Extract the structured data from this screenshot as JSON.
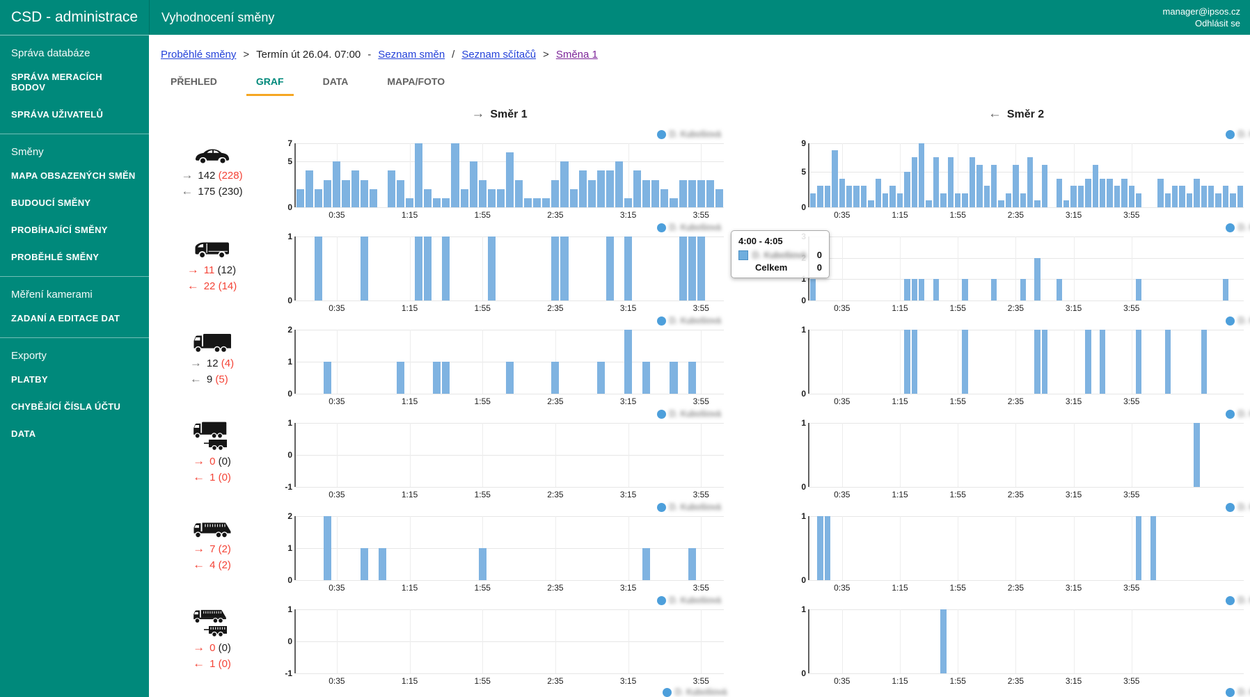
{
  "colors": {
    "teal": "#00897b",
    "tab_underline": "#f5a623",
    "link": "#2442d9",
    "visited_link": "#7d2699",
    "bar": "#7fb3e1",
    "legend_dot": "#4d9fdb",
    "red": "#f44336",
    "gray": "#757575"
  },
  "topbar": {
    "brand": "CSD - administrace",
    "title": "Vyhodnocení směny",
    "email": "manager@ipsos.cz",
    "logout": "Odhlásit se"
  },
  "sidebar": {
    "sections": [
      {
        "header": "Správa databáze",
        "items": [
          {
            "label": "SPRÁVA MERACÍCH BODOV"
          },
          {
            "label": "SPRÁVA UŽIVATELŮ"
          }
        ]
      },
      {
        "header": "Směny",
        "items": [
          {
            "label": "MAPA OBSAZENÝCH SMĚN"
          },
          {
            "label": "BUDOUCÍ SMĚNY"
          },
          {
            "label": "PROBÍHAJÍCÍ SMĚNY"
          },
          {
            "label": "PROBĚHLÉ SMĚNY"
          }
        ]
      },
      {
        "header": "Měření kamerami",
        "items": [
          {
            "label": "ZADANÍ A EDITACE DAT"
          }
        ]
      },
      {
        "header": "Exporty",
        "items": [
          {
            "label": "PLATBY"
          },
          {
            "label": "CHYBĚJÍCÍ ČÍSLA ÚČTU"
          },
          {
            "label": "DATA"
          }
        ]
      }
    ]
  },
  "breadcrumb": [
    {
      "text": "Proběhlé směny",
      "type": "link"
    },
    {
      "text": ">",
      "type": "sep"
    },
    {
      "text": "Termín út 26.04. 07:00",
      "type": "text"
    },
    {
      "text": "-",
      "type": "sep"
    },
    {
      "text": "Seznam směn",
      "type": "link"
    },
    {
      "text": "/",
      "type": "sep"
    },
    {
      "text": "Seznam sčítačů",
      "type": "link"
    },
    {
      "text": ">",
      "type": "sep"
    },
    {
      "text": "Směna 1",
      "type": "visited"
    }
  ],
  "tabs": [
    {
      "label": "PŘEHLED",
      "active": false
    },
    {
      "label": "GRAF",
      "active": true
    },
    {
      "label": "DATA",
      "active": false
    },
    {
      "label": "MAPA/FOTO",
      "active": false
    }
  ],
  "direction_headers": {
    "arrow_right": "→",
    "dir1": "Směr 1",
    "arrow_left": "←",
    "dir2": "Směr 2"
  },
  "legend_name": "D. Kubošiová",
  "tooltip": {
    "title": "4:00 - 4:05",
    "series_name": "D. Kubošiová",
    "series_value": "0",
    "total_label": "Celkem",
    "total_value": "0"
  },
  "xlabels": [
    "0:35",
    "1:15",
    "1:55",
    "2:35",
    "3:15",
    "3:55"
  ],
  "xlabel_indices": [
    4,
    12,
    20,
    28,
    36,
    44
  ],
  "rows": [
    {
      "vehicle": "car-icon",
      "counts": [
        {
          "arrow": "→",
          "arrow_color": "gray",
          "number": "142",
          "number_color": "dark",
          "paren": "(228)",
          "paren_color": "red"
        },
        {
          "arrow": "←",
          "arrow_color": "gray",
          "number": "175",
          "number_color": "dark",
          "paren": "(230)",
          "paren_color": "dark"
        }
      ],
      "left_chart": {
        "ymin": 0,
        "ymax": 7,
        "yticks": [
          7,
          5,
          0
        ],
        "bars": [
          2,
          4,
          2,
          3,
          5,
          3,
          4,
          3,
          2,
          0,
          4,
          3,
          1,
          7,
          2,
          1,
          1,
          7,
          2,
          5,
          3,
          2,
          2,
          6,
          3,
          1,
          1,
          1,
          3,
          5,
          2,
          4,
          3,
          4,
          4,
          5,
          1,
          4,
          3,
          3,
          2,
          1,
          3,
          3,
          3,
          3,
          2
        ]
      },
      "right_chart": {
        "ymin": 0,
        "ymax": 9,
        "yticks": [
          9,
          5,
          0
        ],
        "bars": [
          2,
          3,
          3,
          8,
          4,
          3,
          3,
          3,
          1,
          4,
          2,
          3,
          2,
          5,
          7,
          9,
          1,
          7,
          2,
          7,
          2,
          2,
          7,
          6,
          3,
          6,
          1,
          2,
          6,
          2,
          7,
          1,
          6,
          0,
          4,
          1,
          3,
          3,
          4,
          6,
          4,
          4,
          3,
          4,
          3,
          2,
          0,
          0,
          4,
          2,
          3,
          3,
          2,
          4,
          3,
          3,
          2,
          3,
          2,
          3
        ]
      }
    },
    {
      "vehicle": "van-icon",
      "counts": [
        {
          "arrow": "→",
          "arrow_color": "red",
          "number": "11",
          "number_color": "red",
          "paren": "(12)",
          "paren_color": "dark"
        },
        {
          "arrow": "←",
          "arrow_color": "red",
          "number": "22",
          "number_color": "red",
          "paren": "(14)",
          "paren_color": "red"
        }
      ],
      "left_chart": {
        "ymin": 0,
        "ymax": 1,
        "yticks": [
          1,
          0
        ],
        "bars": [
          0,
          0,
          1,
          0,
          0,
          0,
          0,
          1,
          0,
          0,
          0,
          0,
          0,
          1,
          1,
          0,
          1,
          0,
          0,
          0,
          0,
          1,
          0,
          0,
          0,
          0,
          0,
          0,
          1,
          1,
          0,
          0,
          0,
          0,
          1,
          0,
          1,
          0,
          0,
          0,
          0,
          0,
          1,
          1,
          1,
          0,
          0
        ]
      },
      "right_chart": {
        "ymin": 0,
        "ymax": 3,
        "yticks": [
          3,
          2,
          1,
          0
        ],
        "bars": [
          1,
          0,
          0,
          0,
          0,
          0,
          0,
          0,
          0,
          0,
          0,
          0,
          0,
          1,
          1,
          1,
          0,
          1,
          0,
          0,
          0,
          1,
          0,
          0,
          0,
          1,
          0,
          0,
          0,
          1,
          0,
          2,
          0,
          0,
          1,
          0,
          0,
          0,
          0,
          0,
          0,
          0,
          0,
          0,
          0,
          1,
          0,
          0,
          0,
          0,
          0,
          0,
          0,
          0,
          0,
          0,
          0,
          1,
          0,
          0
        ]
      }
    },
    {
      "vehicle": "truck-icon",
      "counts": [
        {
          "arrow": "→",
          "arrow_color": "gray",
          "number": "12",
          "number_color": "dark",
          "paren": "(4)",
          "paren_color": "red"
        },
        {
          "arrow": "←",
          "arrow_color": "gray",
          "number": "9",
          "number_color": "dark",
          "paren": "(5)",
          "paren_color": "red"
        }
      ],
      "left_chart": {
        "ymin": 0,
        "ymax": 2,
        "yticks": [
          2,
          1,
          0
        ],
        "bars": [
          0,
          0,
          0,
          1,
          0,
          0,
          0,
          0,
          0,
          0,
          0,
          1,
          0,
          0,
          0,
          1,
          1,
          0,
          0,
          0,
          0,
          0,
          0,
          1,
          0,
          0,
          0,
          0,
          1,
          0,
          0,
          0,
          0,
          1,
          0,
          0,
          2,
          0,
          1,
          0,
          0,
          1,
          0,
          1,
          0,
          0,
          0
        ]
      },
      "right_chart": {
        "ymin": 0,
        "ymax": 1,
        "yticks": [
          1,
          0
        ],
        "bars": [
          0,
          0,
          0,
          0,
          0,
          0,
          0,
          0,
          0,
          0,
          0,
          0,
          0,
          1,
          1,
          0,
          0,
          0,
          0,
          0,
          0,
          1,
          0,
          0,
          0,
          0,
          0,
          0,
          0,
          0,
          0,
          1,
          1,
          0,
          0,
          0,
          0,
          0,
          1,
          0,
          1,
          0,
          0,
          0,
          0,
          1,
          0,
          0,
          0,
          1,
          0,
          0,
          0,
          0,
          1,
          0,
          0,
          0,
          0,
          0
        ]
      }
    },
    {
      "vehicle": "truck-trailer-icon",
      "counts": [
        {
          "arrow": "→",
          "arrow_color": "red",
          "number": "0",
          "number_color": "red",
          "paren": "(0)",
          "paren_color": "dark"
        },
        {
          "arrow": "←",
          "arrow_color": "red",
          "number": "1",
          "number_color": "red",
          "paren": "(0)",
          "paren_color": "red"
        }
      ],
      "left_chart": {
        "ymin": -1,
        "ymax": 1,
        "yticks": [
          1,
          0,
          -1
        ],
        "bars": [
          0,
          0,
          0,
          0,
          0,
          0,
          0,
          0,
          0,
          0,
          0,
          0,
          0,
          0,
          0,
          0,
          0,
          0,
          0,
          0,
          0,
          0,
          0,
          0,
          0,
          0,
          0,
          0,
          0,
          0,
          0,
          0,
          0,
          0,
          0,
          0,
          0,
          0,
          0,
          0,
          0,
          0,
          0,
          0,
          0,
          0,
          0
        ]
      },
      "right_chart": {
        "ymin": 0,
        "ymax": 1,
        "yticks": [
          1,
          0
        ],
        "bars": [
          0,
          0,
          0,
          0,
          0,
          0,
          0,
          0,
          0,
          0,
          0,
          0,
          0,
          0,
          0,
          0,
          0,
          0,
          0,
          0,
          0,
          0,
          0,
          0,
          0,
          0,
          0,
          0,
          0,
          0,
          0,
          0,
          0,
          0,
          0,
          0,
          0,
          0,
          0,
          0,
          0,
          0,
          0,
          0,
          0,
          0,
          0,
          0,
          0,
          0,
          0,
          0,
          0,
          1,
          0,
          0,
          0,
          0,
          0,
          0
        ]
      }
    },
    {
      "vehicle": "dump-truck-icon",
      "counts": [
        {
          "arrow": "→",
          "arrow_color": "red",
          "number": "7",
          "number_color": "red",
          "paren": "(2)",
          "paren_color": "red"
        },
        {
          "arrow": "←",
          "arrow_color": "red",
          "number": "4",
          "number_color": "red",
          "paren": "(2)",
          "paren_color": "red"
        }
      ],
      "left_chart": {
        "ymin": 0,
        "ymax": 2,
        "yticks": [
          2,
          1,
          0
        ],
        "bars": [
          0,
          0,
          0,
          2,
          0,
          0,
          0,
          1,
          0,
          1,
          0,
          0,
          0,
          0,
          0,
          0,
          0,
          0,
          0,
          0,
          1,
          0,
          0,
          0,
          0,
          0,
          0,
          0,
          0,
          0,
          0,
          0,
          0,
          0,
          0,
          0,
          0,
          0,
          1,
          0,
          0,
          0,
          0,
          1,
          0,
          0,
          0
        ]
      },
      "right_chart": {
        "ymin": 0,
        "ymax": 1,
        "yticks": [
          1,
          0
        ],
        "bars": [
          0,
          1,
          1,
          0,
          0,
          0,
          0,
          0,
          0,
          0,
          0,
          0,
          0,
          0,
          0,
          0,
          0,
          0,
          0,
          0,
          0,
          0,
          0,
          0,
          0,
          0,
          0,
          0,
          0,
          0,
          0,
          0,
          0,
          0,
          0,
          0,
          0,
          0,
          0,
          0,
          0,
          0,
          0,
          0,
          0,
          1,
          0,
          1,
          0,
          0,
          0,
          0,
          0,
          0,
          0,
          0,
          0,
          0,
          0,
          0
        ]
      }
    },
    {
      "vehicle": "dump-truck-trailer-icon",
      "counts": [
        {
          "arrow": "→",
          "arrow_color": "red",
          "number": "0",
          "number_color": "red",
          "paren": "(0)",
          "paren_color": "dark"
        },
        {
          "arrow": "←",
          "arrow_color": "red",
          "number": "1",
          "number_color": "red",
          "paren": "(0)",
          "paren_color": "red"
        }
      ],
      "left_chart": {
        "ymin": -1,
        "ymax": 1,
        "yticks": [
          1,
          0,
          -1
        ],
        "bars": [
          0,
          0,
          0,
          0,
          0,
          0,
          0,
          0,
          0,
          0,
          0,
          0,
          0,
          0,
          0,
          0,
          0,
          0,
          0,
          0,
          0,
          0,
          0,
          0,
          0,
          0,
          0,
          0,
          0,
          0,
          0,
          0,
          0,
          0,
          0,
          0,
          0,
          0,
          0,
          0,
          0,
          0,
          0,
          0,
          0,
          0,
          0
        ]
      },
      "right_chart": {
        "ymin": 0,
        "ymax": 1,
        "yticks": [
          1,
          0
        ],
        "bars": [
          0,
          0,
          0,
          0,
          0,
          0,
          0,
          0,
          0,
          0,
          0,
          0,
          0,
          0,
          0,
          0,
          0,
          0,
          1,
          0,
          0,
          0,
          0,
          0,
          0,
          0,
          0,
          0,
          0,
          0,
          0,
          0,
          0,
          0,
          0,
          0,
          0,
          0,
          0,
          0,
          0,
          0,
          0,
          0,
          0,
          0,
          0,
          0,
          0,
          0,
          0,
          0,
          0,
          0,
          0,
          0,
          0,
          0,
          0,
          0
        ]
      }
    }
  ]
}
